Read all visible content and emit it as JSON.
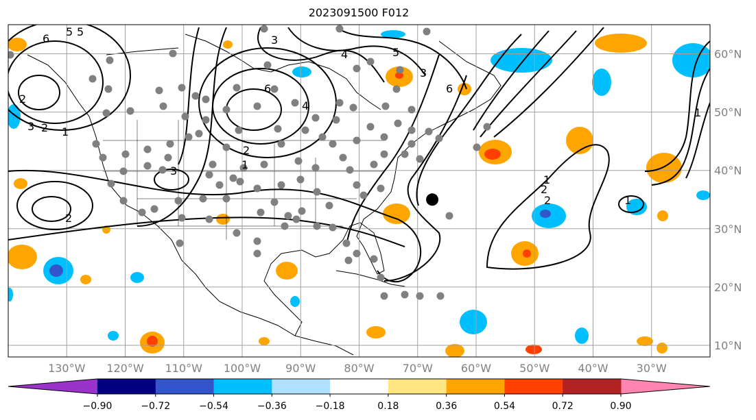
{
  "title": "2023091500 F012",
  "map": {
    "projection": "equirectangular",
    "extent": {
      "lon_min": -140,
      "lon_max": -20,
      "lat_min": 8,
      "lat_max": 65
    },
    "gridlines": true,
    "lon_labels": [
      "130°W",
      "120°W",
      "110°W",
      "100°W",
      "90°W",
      "80°W",
      "70°W",
      "60°W",
      "50°W",
      "40°W",
      "30°W"
    ],
    "lon_values": [
      -130,
      -120,
      -110,
      -100,
      -90,
      -80,
      -70,
      -60,
      -50,
      -40,
      -30
    ],
    "lat_labels": [
      "60°N",
      "50°N",
      "40°N",
      "30°N",
      "20°N",
      "10°N"
    ],
    "lat_values": [
      60,
      50,
      40,
      30,
      20,
      10
    ],
    "storm_marker": {
      "lon": -67.5,
      "lat": 35
    },
    "contour_labels": [
      "6",
      "5",
      "4",
      "3",
      "2",
      "1",
      "6",
      "5",
      "4",
      "3",
      "2",
      "1",
      "2",
      "3",
      "2",
      "1",
      "1",
      "2",
      "3",
      "1",
      "2",
      "6",
      "5"
    ]
  },
  "colorbar": {
    "ticks": [
      "−0.90",
      "−0.72",
      "−0.54",
      "−0.36",
      "−0.18",
      "0.18",
      "0.36",
      "0.54",
      "0.72",
      "0.90"
    ],
    "colors": [
      "#9933cc",
      "#000080",
      "#3355cc",
      "#00bfff",
      "#b0e0ff",
      "#ffffff",
      "#ffe680",
      "#ffa500",
      "#ff4000",
      "#b22222",
      "#ff85b0"
    ],
    "extend": "both"
  },
  "colors": {
    "grid": "#a0a0a0",
    "ridge": "#808080"
  }
}
